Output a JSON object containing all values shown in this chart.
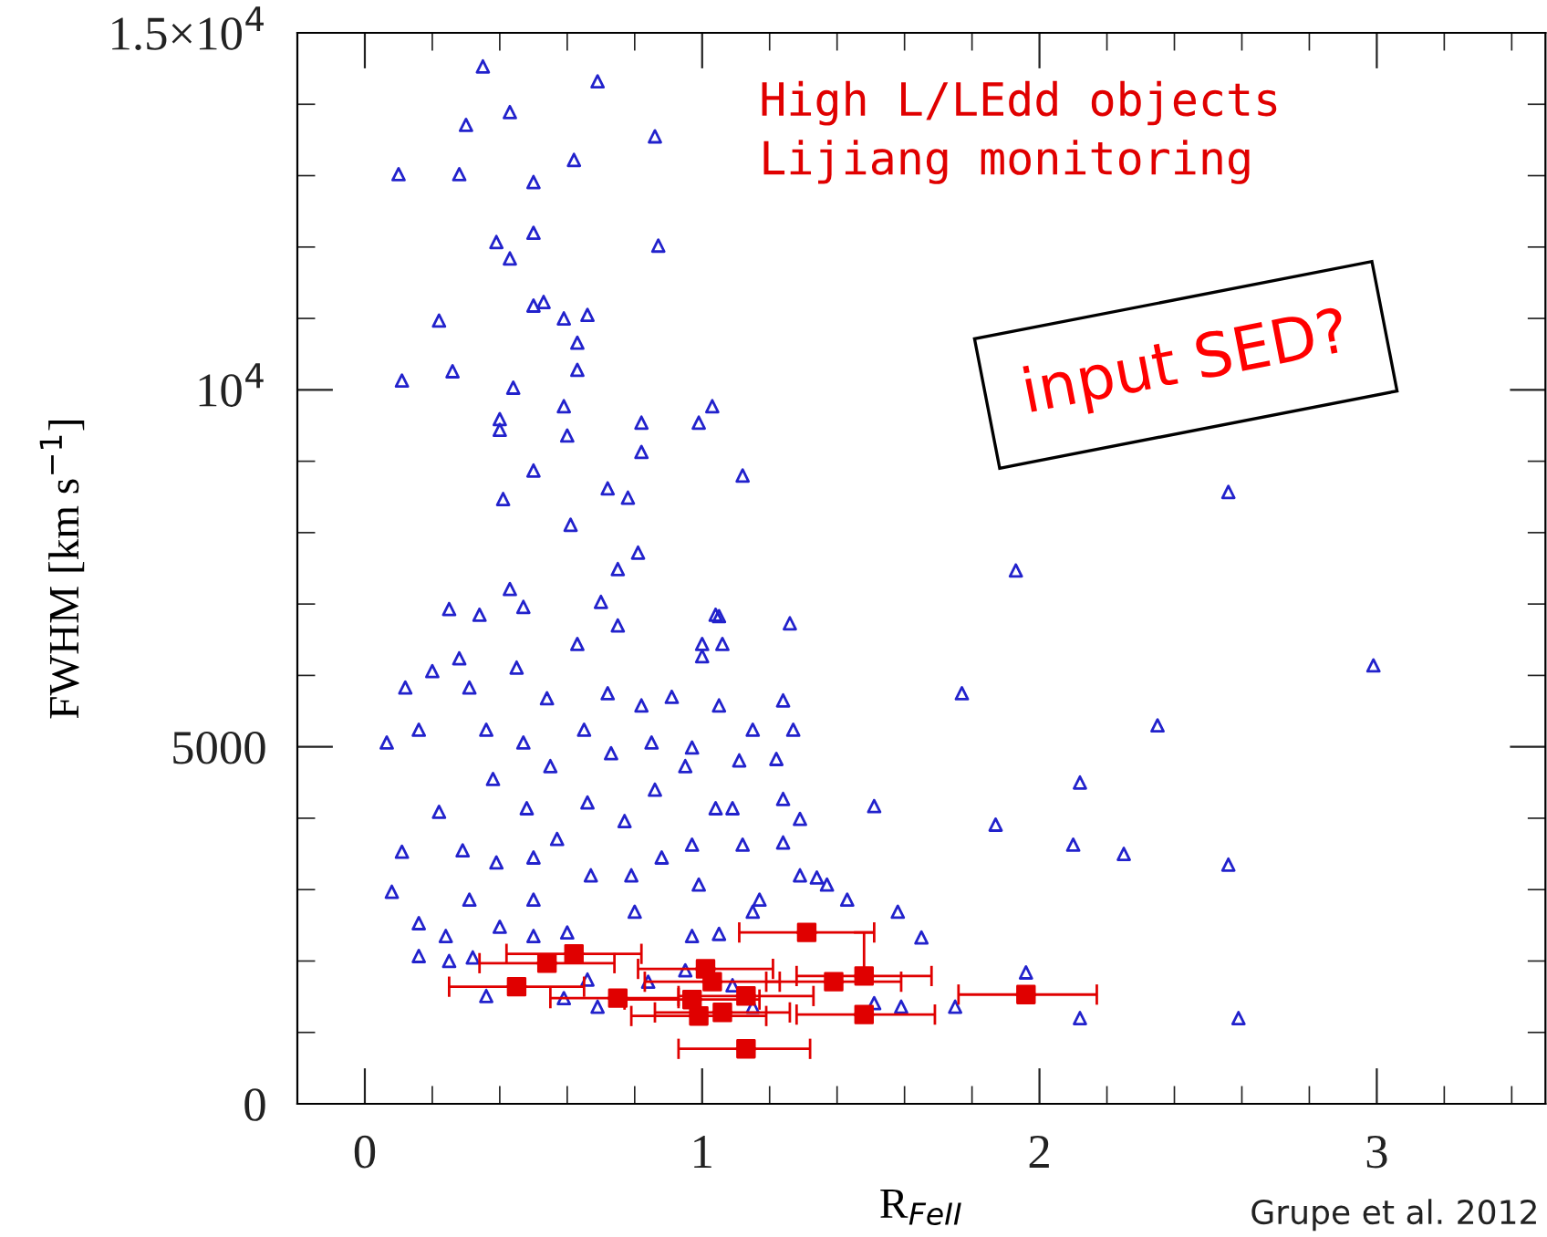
{
  "chart_data": {
    "type": "scatter",
    "xlabel": "R$_{FeII}$",
    "ylabel": "FWHM [km s$^{−1}$]",
    "xlim": [
      -0.2,
      3.5
    ],
    "xticks": [
      0,
      1,
      2,
      3
    ],
    "ylim": [
      0,
      15000
    ],
    "yticks": [
      0,
      5000,
      {
        "value": 10000,
        "label": "10$^{4}$"
      },
      {
        "value": 15000,
        "label": "1.5×10$^{4}$"
      }
    ],
    "grid": false,
    "annotations": [
      "input SED?",
      "Grupe et al. 2012"
    ],
    "series": [
      {
        "color": "#2222cc",
        "marker": "triangle",
        "x": [
          0.35,
          0.69,
          0.43,
          0.3,
          0.86,
          0.62,
          0.1,
          0.28,
          0.5,
          0.5,
          0.39,
          0.43,
          0.87,
          0.5,
          0.53,
          0.22,
          0.59,
          0.66,
          0.63,
          0.63,
          0.11,
          0.26,
          0.44,
          0.4,
          0.4,
          0.59,
          0.6,
          0.82,
          0.82,
          0.99,
          1.03,
          1.12,
          1.04,
          0.75,
          0.41,
          0.61,
          0.81,
          0.78,
          0.72,
          0.5,
          2.56,
          1.93,
          2.99,
          2.35,
          1.77,
          2.12,
          1.87,
          2.1,
          2.25,
          2.56,
          1.26,
          1.51,
          1.58,
          1.65,
          1.96,
          1.75,
          2.12,
          2.59,
          1.59,
          1.51,
          1.43,
          1.37,
          1.34,
          1.29,
          1.24,
          1.29,
          1.24,
          1.22,
          1.27,
          1.24,
          0.065,
          0.08,
          0.11,
          0.16,
          0.16,
          0.12,
          0.16,
          0.2,
          0.22,
          0.24,
          0.25,
          0.25,
          0.28,
          0.31,
          0.29,
          0.31,
          0.32,
          0.36,
          0.34,
          0.36,
          0.38,
          0.39,
          0.4,
          0.43,
          0.45,
          0.47,
          0.48,
          0.5,
          0.5,
          0.5,
          0.47,
          0.54,
          0.55,
          0.57,
          0.6,
          0.59,
          0.63,
          0.65,
          0.66,
          0.67,
          0.7,
          0.72,
          0.73,
          0.77,
          0.79,
          0.8,
          0.75,
          0.82,
          0.85,
          0.86,
          0.88,
          0.91,
          0.95,
          0.97,
          0.97,
          1.0,
          1.06,
          1.05,
          1.05,
          1.04,
          1.09,
          1.11,
          0.99,
          1.05,
          0.97,
          1.0,
          1.17,
          1.15,
          1.15,
          1.12,
          0.69,
          0.84,
          0.95,
          1.09,
          1.15,
          0.66
        ],
        "values": [
          14530,
          14320,
          13890,
          13710,
          13550,
          13220,
          13020,
          13020,
          12910,
          12200,
          12070,
          11840,
          12020,
          11180,
          11230,
          10970,
          11000,
          11050,
          10660,
          10280,
          10130,
          10260,
          10030,
          9590,
          9440,
          9770,
          9360,
          9540,
          9130,
          9540,
          9770,
          8800,
          6850,
          7490,
          8470,
          8110,
          7720,
          8490,
          8620,
          8870,
          8570,
          7470,
          6140,
          5300,
          5750,
          4500,
          3910,
          3630,
          3500,
          3350,
          6730,
          4170,
          2690,
          2330,
          1840,
          1360,
          1200,
          1200,
          1360,
          1410,
          2860,
          3070,
          3170,
          3200,
          3660,
          3990,
          4270,
          4830,
          5240,
          5650,
          5060,
          2970,
          3530,
          2530,
          2070,
          5830,
          5240,
          6060,
          4090,
          2350,
          2000,
          6930,
          6240,
          5830,
          3550,
          2860,
          2050,
          1510,
          6850,
          5240,
          4550,
          3380,
          2480,
          7210,
          6110,
          5060,
          4140,
          3450,
          2860,
          2350,
          6960,
          5680,
          4730,
          3710,
          2400,
          1480,
          6440,
          5240,
          4220,
          3200,
          7030,
          5750,
          4910,
          3960,
          3200,
          2690,
          6700,
          5580,
          5060,
          4400,
          3450,
          5700,
          4730,
          3630,
          4990,
          6440,
          6440,
          6830,
          5580,
          4140,
          4140,
          4810,
          3070,
          2380,
          2350,
          6270,
          2860,
          2690,
          5240,
          3630,
          1360,
          1710,
          1870,
          1660,
          1360,
          1740
        ]
      },
      {
        "name": "High L/LEdd objects\nLijiang monitoring",
        "color": "#e00000",
        "marker": "square",
        "x": [
          1.31,
          0.62,
          0.54,
          0.45,
          0.75,
          1.01,
          1.03,
          0.97,
          0.99,
          1.06,
          1.13,
          1.13,
          1.39,
          1.48,
          1.48,
          1.96
        ],
        "values": [
          2400,
          2100,
          1970,
          1640,
          1480,
          1890,
          1710,
          1460,
          1230,
          1280,
          1510,
          770,
          1710,
          1790,
          1250,
          1530
        ],
        "xerrors": [
          [
            1.11,
            1.51
          ],
          [
            0.42,
            0.82
          ],
          [
            0.34,
            0.74
          ],
          [
            0.25,
            0.65
          ],
          [
            0.55,
            0.93
          ],
          [
            0.81,
            1.21
          ],
          [
            0.83,
            1.23
          ],
          [
            0.77,
            1.17
          ],
          [
            0.79,
            1.19
          ],
          [
            0.86,
            1.26
          ],
          [
            0.93,
            1.33
          ],
          [
            0.93,
            1.32
          ],
          [
            1.19,
            1.59
          ],
          [
            1.28,
            1.68
          ],
          [
            1.28,
            1.69
          ],
          [
            1.76,
            2.17
          ]
        ],
        "errors": [
          null,
          null,
          null,
          null,
          null,
          null,
          null,
          null,
          null,
          null,
          null,
          null,
          null,
          [
            1790,
            2400
          ],
          null,
          null
        ]
      }
    ]
  }
}
